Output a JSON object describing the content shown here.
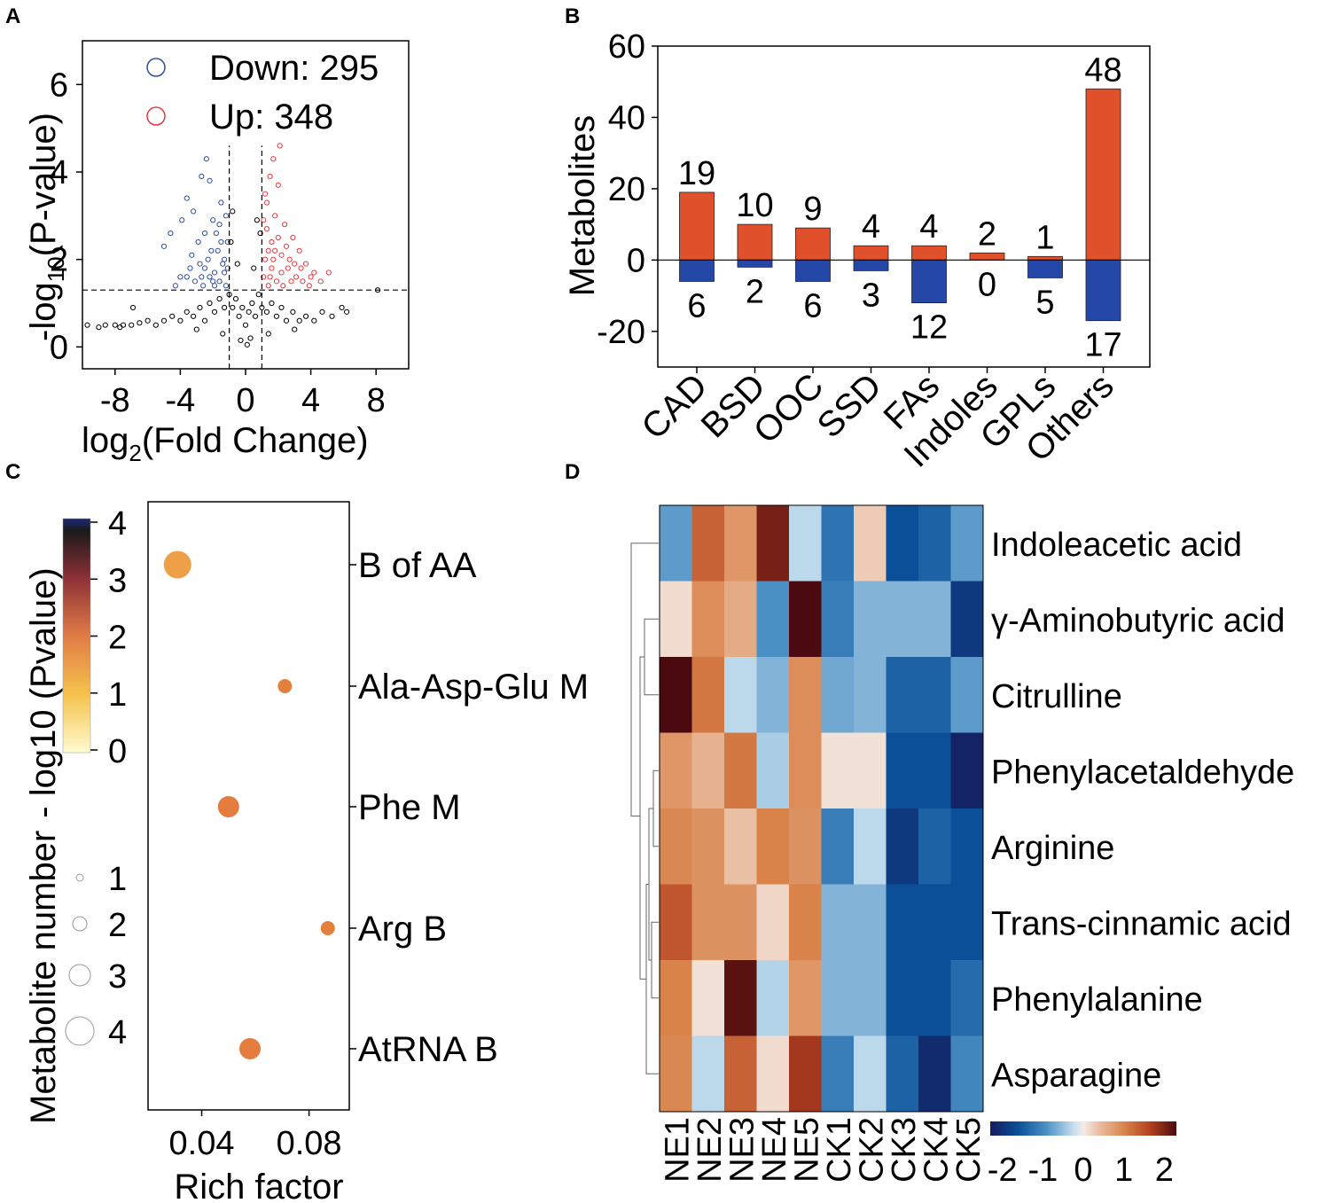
{
  "colors": {
    "up": "#e8393f",
    "down": "#2f4f9f",
    "bar_up": "#e0502a",
    "bar_down": "#2447a8",
    "ns": "#000000",
    "bubble_light": "#f0a84a",
    "bubble_dark": "#e7803c"
  },
  "panels": {
    "A": "A",
    "B": "B",
    "C": "C",
    "D": "D"
  },
  "chart_data": [
    {
      "panel": "A",
      "type": "scatter",
      "title": "",
      "xlabel_main": "log",
      "xlabel_sub": "2",
      "xlabel_rest": "(Fold Change)",
      "ylabel_main": "-log",
      "ylabel_sub": "10",
      "ylabel_rest": "(P-value)",
      "xlim": [
        -10,
        10
      ],
      "ylim": [
        -0.5,
        7
      ],
      "xticks": [
        -8,
        -4,
        0,
        4,
        8
      ],
      "xtick_labels": [
        "-8",
        "-4",
        "0",
        "4",
        "8"
      ],
      "yticks": [
        0,
        2,
        4,
        6
      ],
      "ytick_labels": [
        "0",
        "2",
        "4",
        "6"
      ],
      "fc_threshold": [
        -1,
        1
      ],
      "p_threshold": 1.3,
      "legend": [
        {
          "label": "Down: 295",
          "color": "#2f4f9f"
        },
        {
          "label": "Up: 348",
          "color": "#e8393f"
        }
      ],
      "series": [
        {
          "name": "Down",
          "count": 295,
          "points": [
            [
              -4.6,
              2.6
            ],
            [
              -3.9,
              2.9
            ],
            [
              -3.6,
              3.4
            ],
            [
              -3.2,
              3.1
            ],
            [
              -2.7,
              3.9
            ],
            [
              -2.4,
              4.3
            ],
            [
              -2.2,
              3.8
            ],
            [
              -2.9,
              2.4
            ],
            [
              -3.3,
              2.1
            ],
            [
              -4.0,
              1.6
            ],
            [
              -3.6,
              1.6
            ],
            [
              -3.1,
              1.5
            ],
            [
              -2.5,
              1.8
            ],
            [
              -2.1,
              2.2
            ],
            [
              -1.8,
              2.6
            ],
            [
              -1.5,
              3.3
            ],
            [
              -1.3,
              2.0
            ],
            [
              -1.6,
              1.5
            ],
            [
              -1.9,
              1.7
            ],
            [
              -2.6,
              1.4
            ],
            [
              -1.2,
              1.4
            ],
            [
              -1.4,
              1.9
            ],
            [
              -2.0,
              2.9
            ],
            [
              -2.3,
              2.0
            ],
            [
              -1.1,
              2.4
            ],
            [
              -1.7,
              2.2
            ],
            [
              -2.8,
              1.9
            ],
            [
              -3.4,
              1.8
            ],
            [
              -4.3,
              1.4
            ],
            [
              -5.0,
              2.3
            ],
            [
              -1.3,
              1.7
            ],
            [
              -1.9,
              1.4
            ],
            [
              -2.2,
              1.6
            ],
            [
              -1.5,
              2.4
            ],
            [
              -1.2,
              3.0
            ],
            [
              -2.5,
              2.6
            ],
            [
              -1.1,
              1.8
            ],
            [
              -1.6,
              2.8
            ],
            [
              -2.0,
              1.5
            ],
            [
              -2.7,
              1.6
            ]
          ]
        },
        {
          "name": "Up",
          "count": 348,
          "points": [
            [
              2.1,
              4.6
            ],
            [
              1.7,
              4.3
            ],
            [
              1.5,
              3.9
            ],
            [
              2.0,
              3.7
            ],
            [
              1.3,
              3.3
            ],
            [
              1.8,
              3.0
            ],
            [
              2.4,
              2.8
            ],
            [
              2.9,
              2.5
            ],
            [
              3.3,
              2.2
            ],
            [
              3.7,
              1.9
            ],
            [
              4.2,
              1.7
            ],
            [
              5.1,
              1.7
            ],
            [
              4.6,
              1.5
            ],
            [
              3.9,
              1.4
            ],
            [
              3.1,
              1.6
            ],
            [
              2.6,
              1.8
            ],
            [
              2.2,
              2.1
            ],
            [
              1.6,
              2.4
            ],
            [
              1.2,
              2.0
            ],
            [
              1.1,
              1.6
            ],
            [
              1.4,
              1.4
            ],
            [
              1.9,
              1.5
            ],
            [
              2.3,
              1.4
            ],
            [
              2.7,
              2.0
            ],
            [
              3.4,
              1.8
            ],
            [
              1.3,
              2.7
            ],
            [
              1.6,
              1.8
            ],
            [
              2.0,
              2.5
            ],
            [
              2.5,
              2.3
            ],
            [
              3.0,
              1.9
            ],
            [
              3.5,
              1.5
            ],
            [
              4.0,
              1.6
            ],
            [
              1.2,
              3.5
            ],
            [
              1.8,
              2.2
            ],
            [
              2.8,
              1.5
            ],
            [
              1.5,
              1.6
            ],
            [
              2.2,
              1.7
            ],
            [
              1.4,
              2.2
            ],
            [
              1.1,
              2.9
            ],
            [
              1.7,
              2.0
            ]
          ]
        },
        {
          "name": "NS",
          "points": [
            [
              -9.7,
              0.5
            ],
            [
              -8.6,
              0.5
            ],
            [
              -8.0,
              0.5
            ],
            [
              -7.5,
              0.5
            ],
            [
              -7.0,
              0.5
            ],
            [
              -6.5,
              0.55
            ],
            [
              -6.0,
              0.6
            ],
            [
              -5.5,
              0.5
            ],
            [
              -5.0,
              0.6
            ],
            [
              -4.5,
              0.7
            ],
            [
              -4.0,
              0.6
            ],
            [
              -3.6,
              0.8
            ],
            [
              -3.2,
              0.7
            ],
            [
              -2.8,
              0.9
            ],
            [
              -2.5,
              0.6
            ],
            [
              -2.2,
              1.0
            ],
            [
              -1.9,
              0.8
            ],
            [
              -1.6,
              1.1
            ],
            [
              -1.3,
              0.9
            ],
            [
              -1.0,
              1.2
            ],
            [
              -0.8,
              0.9
            ],
            [
              -0.6,
              1.1
            ],
            [
              -0.4,
              0.7
            ],
            [
              -0.2,
              0.9
            ],
            [
              0.0,
              0.5
            ],
            [
              0.2,
              0.8
            ],
            [
              0.4,
              1.0
            ],
            [
              0.6,
              0.7
            ],
            [
              0.8,
              1.2
            ],
            [
              1.0,
              0.9
            ],
            [
              1.3,
              0.8
            ],
            [
              1.6,
              1.0
            ],
            [
              1.9,
              0.7
            ],
            [
              2.2,
              0.9
            ],
            [
              2.5,
              0.6
            ],
            [
              2.9,
              0.8
            ],
            [
              3.3,
              0.6
            ],
            [
              3.7,
              0.7
            ],
            [
              4.2,
              0.6
            ],
            [
              4.7,
              0.8
            ],
            [
              5.3,
              0.7
            ],
            [
              5.9,
              0.9
            ],
            [
              6.2,
              0.8
            ],
            [
              8.1,
              1.3
            ],
            [
              -0.9,
              2.4
            ],
            [
              -0.5,
              1.9
            ],
            [
              0.5,
              1.8
            ],
            [
              0.9,
              2.6
            ],
            [
              -0.8,
              3.1
            ],
            [
              0.7,
              2.9
            ],
            [
              -6.9,
              0.9
            ],
            [
              -7.7,
              0.45
            ],
            [
              -9.0,
              0.45
            ],
            [
              -3.0,
              0.4
            ],
            [
              3.0,
              0.4
            ],
            [
              -1.4,
              0.3
            ],
            [
              1.4,
              0.3
            ],
            [
              -0.3,
              0.15
            ],
            [
              0.3,
              0.2
            ],
            [
              0.1,
              0.05
            ]
          ]
        }
      ]
    },
    {
      "panel": "B",
      "type": "bar",
      "title": "",
      "xlabel": "",
      "ylabel": "Metabolites",
      "ylim": [
        -30,
        60
      ],
      "yticks": [
        -20,
        0,
        20,
        40,
        60
      ],
      "ytick_labels": [
        "-20",
        "0",
        "20",
        "40",
        "60"
      ],
      "categories": [
        "CAD",
        "BSD",
        "OOC",
        "SSD",
        "FAs",
        "Indoles",
        "GPLs",
        "Others"
      ],
      "series": [
        {
          "name": "Up",
          "values": [
            19,
            10,
            9,
            4,
            4,
            2,
            1,
            48
          ],
          "labels": [
            "19",
            "10",
            "9",
            "4",
            "4",
            "2",
            "1",
            "48"
          ]
        },
        {
          "name": "Down",
          "values": [
            -6,
            -2,
            -6,
            -3,
            -12,
            0,
            -5,
            -17
          ],
          "labels": [
            "6",
            "2",
            "6",
            "3",
            "12",
            "0",
            "5",
            "17"
          ]
        }
      ]
    },
    {
      "panel": "C",
      "type": "scatter",
      "title": "",
      "xlabel": "Rich factor",
      "xlim": [
        0.02,
        0.095
      ],
      "xticks": [
        0.04,
        0.08
      ],
      "xtick_labels": [
        "0.04",
        "0.08"
      ],
      "pathways": [
        "B of AA",
        "Ala-Asp-Glu M",
        "Phe M",
        "Arg B",
        "AtRNA B"
      ],
      "rich_factor": [
        0.031,
        0.071,
        0.05,
        0.087,
        0.058
      ],
      "metabolite_number": [
        4,
        1,
        2,
        1,
        2
      ],
      "neg_log10_p": [
        1.2,
        2.0,
        2.1,
        2.0,
        2.1
      ],
      "colorbar_title": "- log10 (Pvalue)",
      "colorbar_ticks": [
        "0",
        "1",
        "2",
        "3",
        "4"
      ],
      "colorbar_range": [
        0,
        4
      ],
      "size_title": "Metabolite number",
      "size_ticks": [
        "1",
        "2",
        "3",
        "4"
      ]
    },
    {
      "panel": "D",
      "type": "heatmap",
      "title": "",
      "columns": [
        "NE1",
        "NE2",
        "NE3",
        "NE4",
        "NE5",
        "CK1",
        "CK2",
        "CK3",
        "CK4",
        "CK5"
      ],
      "rows": [
        "Indoleacetic acid",
        "γ-Aminobutyric acid",
        "Citrulline",
        "Phenylacetaldehyde",
        "Arginine",
        "Trans-cinnamic acid",
        "Phenylalanine",
        "Asparagine"
      ],
      "values": [
        [
          -0.8,
          1.3,
          0.8,
          2.0,
          -0.3,
          -1.2,
          0.3,
          -1.6,
          -1.4,
          -0.8
        ],
        [
          0.15,
          0.9,
          0.6,
          -0.9,
          2.3,
          -1.1,
          -0.6,
          -0.6,
          -0.6,
          -1.9
        ],
        [
          2.3,
          1.1,
          -0.3,
          -0.6,
          0.9,
          -0.7,
          -0.6,
          -1.4,
          -1.4,
          -0.8
        ],
        [
          0.8,
          0.55,
          1.1,
          -0.4,
          0.9,
          0.1,
          0.1,
          -1.6,
          -1.6,
          -2.2
        ],
        [
          0.95,
          0.85,
          0.4,
          1.0,
          0.85,
          -1.1,
          -0.3,
          -1.9,
          -1.4,
          -1.6
        ],
        [
          1.4,
          0.85,
          0.85,
          0.2,
          1.0,
          -0.6,
          -0.6,
          -1.6,
          -1.6,
          -1.6
        ],
        [
          1.0,
          0.1,
          2.2,
          -0.35,
          0.8,
          -0.6,
          -0.6,
          -1.6,
          -1.6,
          -1.3
        ],
        [
          0.95,
          -0.3,
          1.3,
          0.15,
          1.7,
          -1.1,
          -0.3,
          -1.4,
          -2.1,
          -1.0
        ]
      ],
      "colorbar_ticks": [
        "-2",
        "-1",
        "0",
        "1",
        "2"
      ],
      "colorbar_range": [
        -2.3,
        2.3
      ]
    }
  ]
}
